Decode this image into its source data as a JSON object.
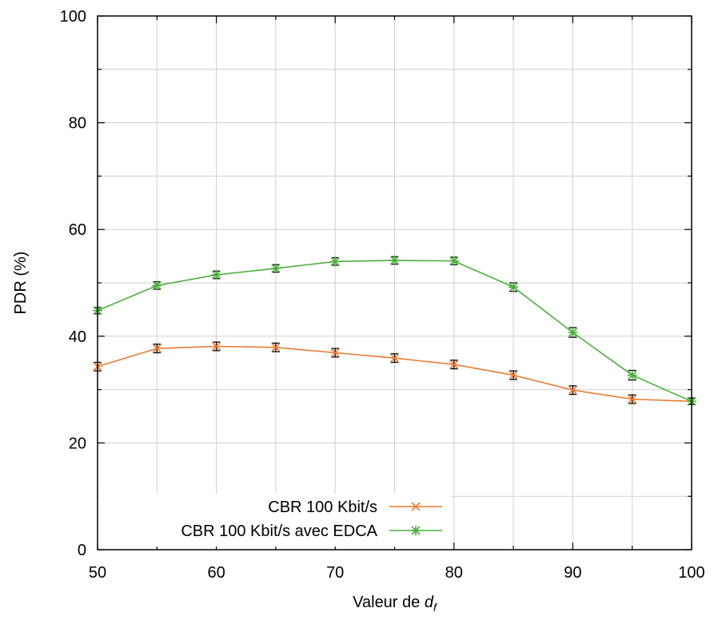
{
  "chart_data": {
    "type": "line",
    "title": "",
    "xlabel_prefix": "Valeur de ",
    "xlabel_symbol": "d",
    "xlabel_subscript": "f",
    "ylabel": "PDR (%)",
    "xlim": [
      50,
      100
    ],
    "ylim": [
      0,
      100
    ],
    "x_ticks": [
      50,
      60,
      70,
      80,
      90,
      100
    ],
    "y_ticks": [
      0,
      20,
      40,
      60,
      80,
      100
    ],
    "grid": true,
    "legend_position": "bottom-center",
    "x": [
      50,
      55,
      60,
      65,
      70,
      75,
      80,
      85,
      90,
      95,
      100
    ],
    "series": [
      {
        "name": "CBR 100 Kbit/s",
        "color": "#e87a30",
        "marker": "x-cross",
        "values": [
          34.3,
          37.7,
          38.1,
          37.9,
          36.9,
          35.9,
          34.7,
          32.7,
          29.9,
          28.2,
          27.8
        ],
        "error": [
          0.8,
          0.8,
          0.8,
          0.8,
          0.8,
          0.8,
          0.8,
          0.8,
          0.8,
          0.8,
          0.6
        ]
      },
      {
        "name": "CBR 100 Kbit/s avec EDCA",
        "color": "#4cae3c",
        "marker": "asterisk",
        "values": [
          44.8,
          49.5,
          51.5,
          52.7,
          54.0,
          54.2,
          54.1,
          49.2,
          40.7,
          32.7,
          27.8
        ],
        "error": [
          0.6,
          0.7,
          0.7,
          0.7,
          0.7,
          0.7,
          0.7,
          0.8,
          0.9,
          0.9,
          0.6
        ]
      }
    ]
  }
}
